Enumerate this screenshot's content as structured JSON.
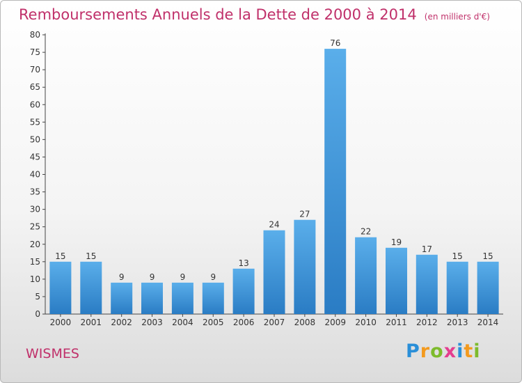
{
  "chart_data": {
    "type": "bar",
    "title": "Remboursements Annuels de la Dette de 2000 à 2014",
    "unit": "(en milliers d'€)",
    "xlabel": "",
    "ylabel": "",
    "categories": [
      "2000",
      "2001",
      "2002",
      "2003",
      "2004",
      "2005",
      "2006",
      "2007",
      "2008",
      "2009",
      "2010",
      "2011",
      "2012",
      "2013",
      "2014"
    ],
    "values": [
      15,
      15,
      9,
      9,
      9,
      9,
      13,
      24,
      27,
      76,
      22,
      19,
      17,
      15,
      15
    ],
    "data_labels": [
      "15",
      "15",
      "9",
      "9",
      "9",
      "9",
      "13",
      "24",
      "27",
      "76",
      "22",
      "19",
      "17",
      "15",
      "15"
    ],
    "ylim": [
      0,
      80
    ],
    "y_ticks": [
      0,
      5,
      10,
      15,
      20,
      25,
      30,
      35,
      40,
      45,
      50,
      55,
      60,
      65,
      70,
      75,
      80
    ],
    "grid": false,
    "legend": "none",
    "bar_color_top": "#5aaeea",
    "bar_color_bottom": "#2a7cc4"
  },
  "place": "WISMES",
  "brand": {
    "letters": [
      "P",
      "r",
      "o",
      "x",
      "i",
      "t",
      "i"
    ],
    "colors": [
      "#2a8fd8",
      "#f39a1e",
      "#7dbb2c",
      "#e43d8f",
      "#2a8fd8",
      "#f39a1e",
      "#7dbb2c"
    ]
  }
}
